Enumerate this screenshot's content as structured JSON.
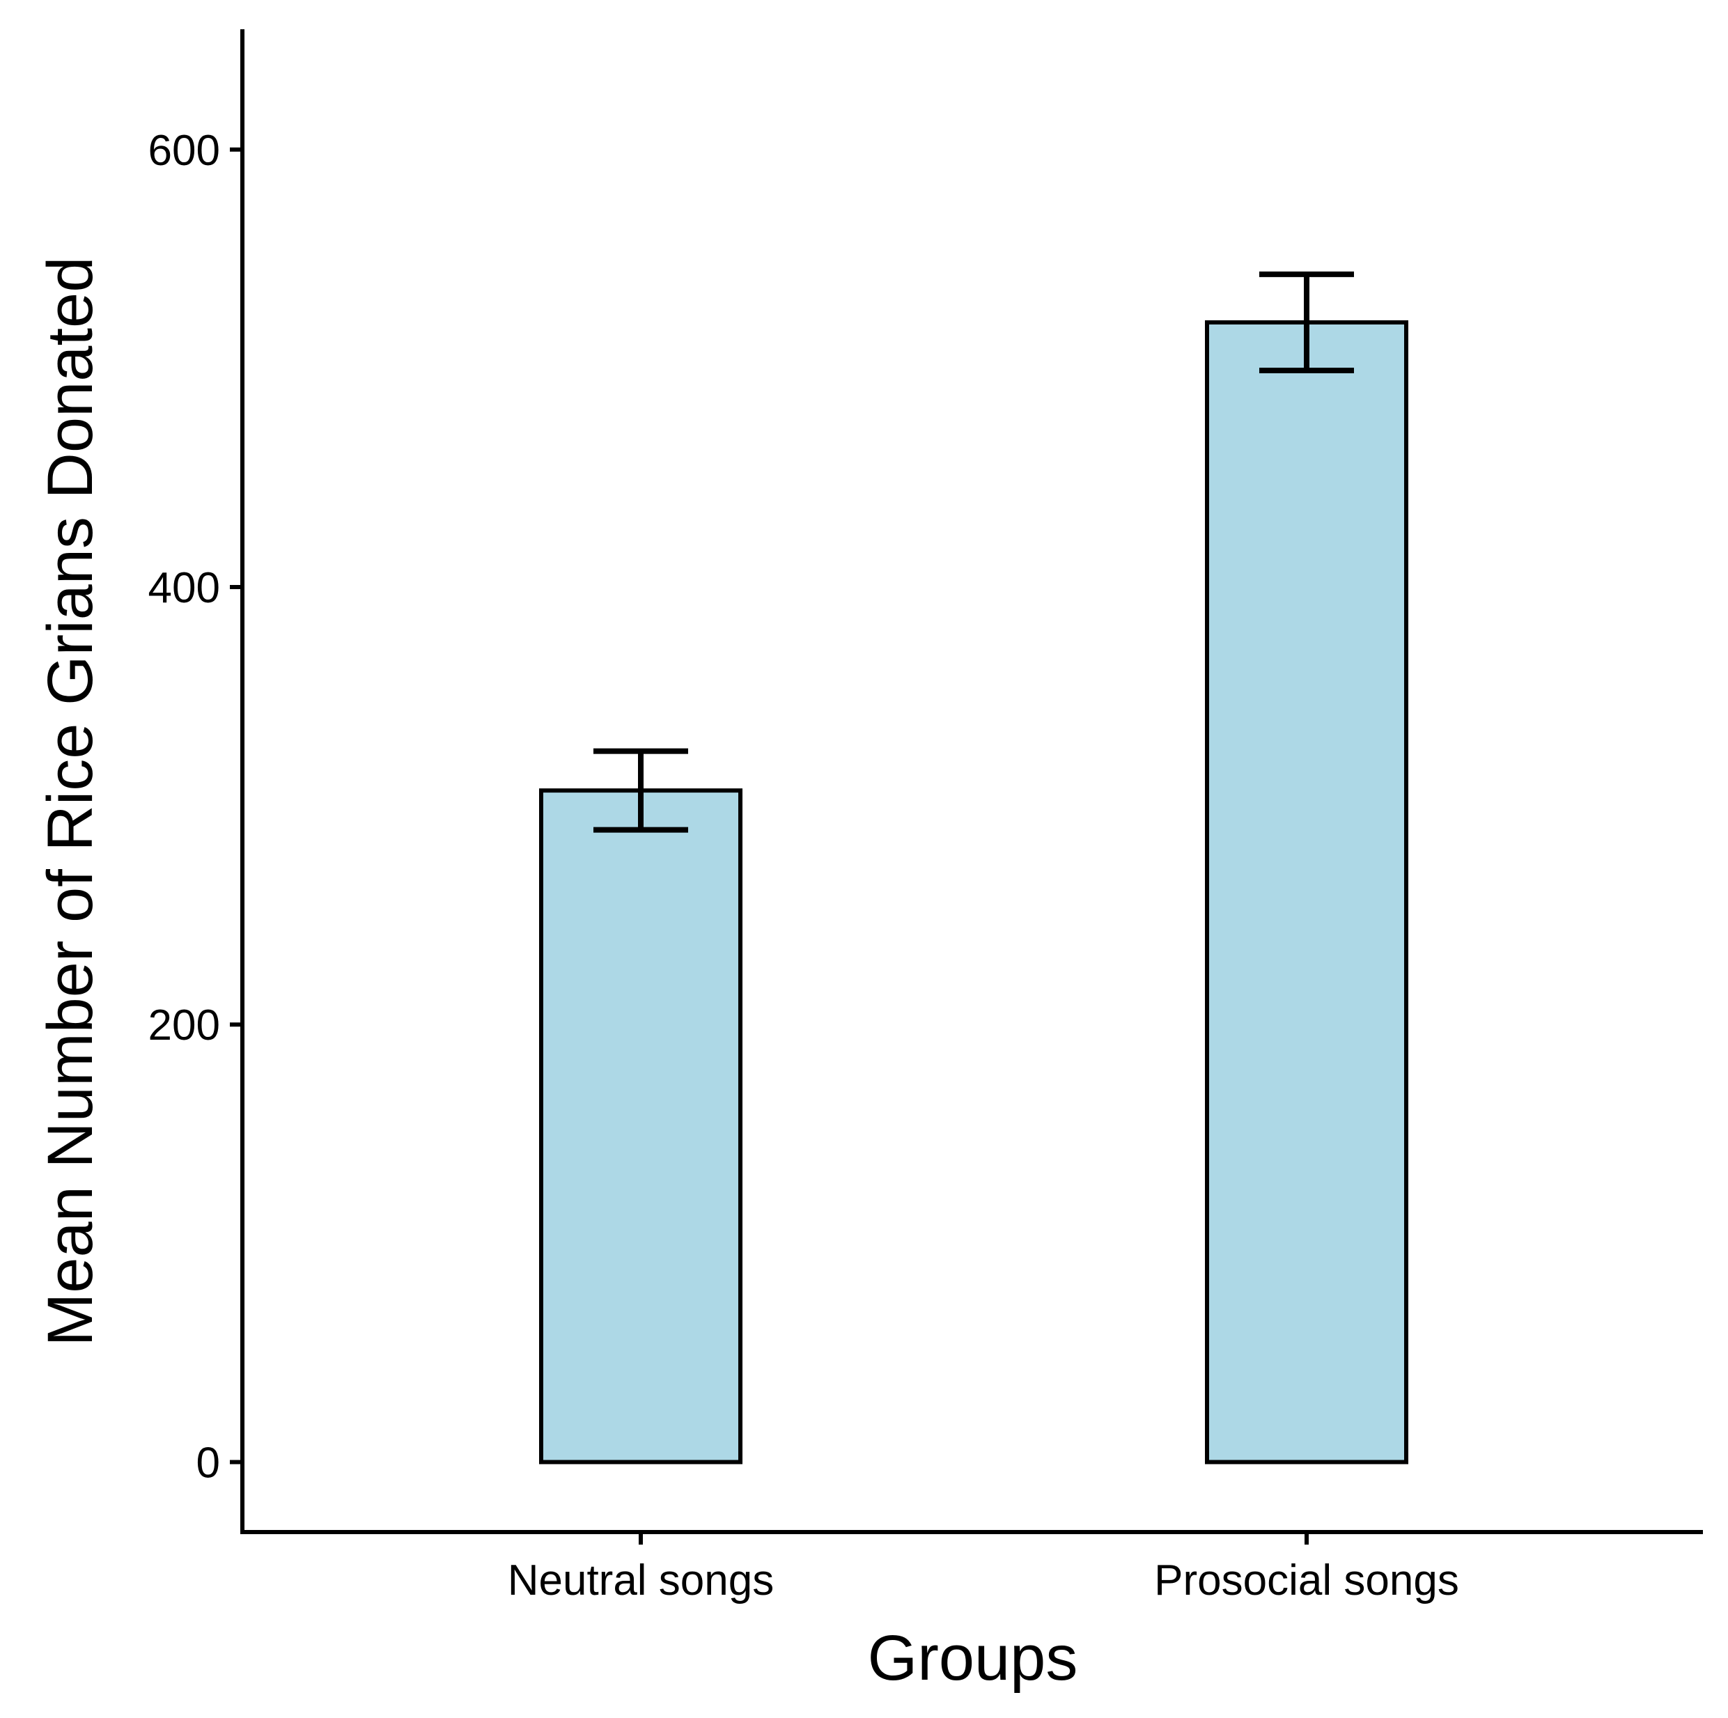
{
  "chart_data": {
    "type": "bar",
    "title": "",
    "xlabel": "Groups",
    "ylabel": "Mean Number of Rice Grians Donated",
    "categories": [
      "Neutral songs",
      "Prosocial songs"
    ],
    "values": [
      307,
      521
    ],
    "error": [
      18,
      22
    ],
    "ylim": [
      -32,
      655
    ],
    "yticks": [
      0,
      200,
      400,
      600
    ],
    "bar_color": "#ADD8E6",
    "grid": false,
    "legend": "none"
  }
}
